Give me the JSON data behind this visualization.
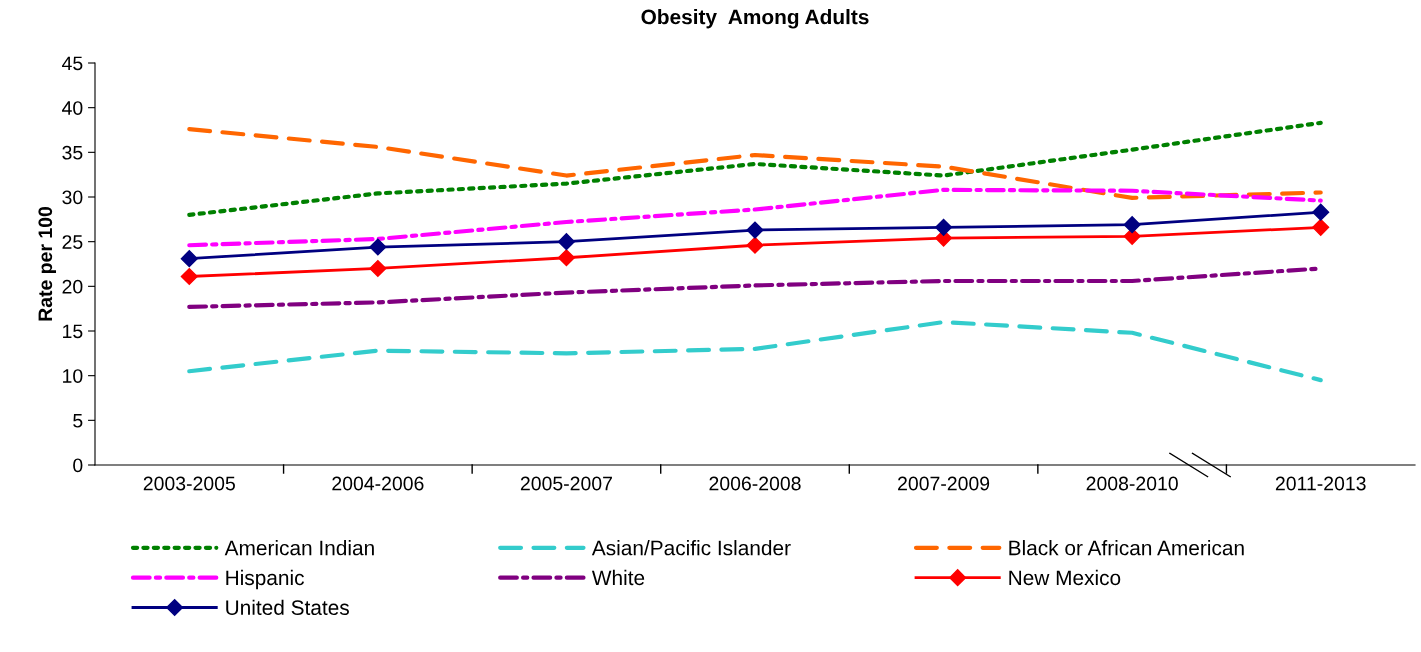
{
  "chart_data": {
    "type": "line",
    "title": "Obesity  Among Adults",
    "ylabel": "Rate per 100",
    "categories": [
      "2003-2005",
      "2004-2006",
      "2005-2007",
      "2006-2008",
      "2007-2009",
      "2008-2010",
      "2011-2013"
    ],
    "ylim": [
      0,
      45
    ],
    "yticks": [
      0,
      5,
      10,
      15,
      20,
      25,
      30,
      35,
      40,
      45
    ],
    "grid": false,
    "legend": "bottom",
    "series": [
      {
        "name": "American Indian",
        "color": "#008000",
        "line_style": "dotted",
        "marker": "none",
        "values": [
          28.0,
          30.4,
          31.5,
          33.7,
          32.4,
          35.3,
          38.3
        ]
      },
      {
        "name": "Asian/Pacific Islander",
        "color": "#33cccc",
        "line_style": "dashed",
        "marker": "none",
        "values": [
          10.5,
          12.8,
          12.5,
          13.0,
          16.0,
          14.8,
          9.5
        ]
      },
      {
        "name": "Black or African American",
        "color": "#ff6600",
        "line_style": "dashed",
        "marker": "none",
        "values": [
          37.6,
          35.6,
          32.4,
          34.7,
          33.4,
          29.9,
          30.5
        ]
      },
      {
        "name": "Hispanic",
        "color": "#ff00ff",
        "line_style": "dashdot",
        "marker": "none",
        "values": [
          24.6,
          25.3,
          27.2,
          28.6,
          30.8,
          30.7,
          29.6
        ]
      },
      {
        "name": "White",
        "color": "#800080",
        "line_style": "dashdot",
        "marker": "none",
        "values": [
          17.7,
          18.2,
          19.3,
          20.1,
          20.6,
          20.6,
          22.0
        ]
      },
      {
        "name": "New Mexico",
        "color": "#ff0000",
        "line_style": "solid",
        "marker": "diamond",
        "values": [
          21.1,
          22.0,
          23.2,
          24.6,
          25.4,
          25.6,
          26.6
        ]
      },
      {
        "name": "United States",
        "color": "#000080",
        "line_style": "solid",
        "marker": "diamond",
        "values": [
          23.1,
          24.4,
          25.0,
          26.3,
          26.6,
          26.9,
          28.3
        ]
      }
    ]
  }
}
